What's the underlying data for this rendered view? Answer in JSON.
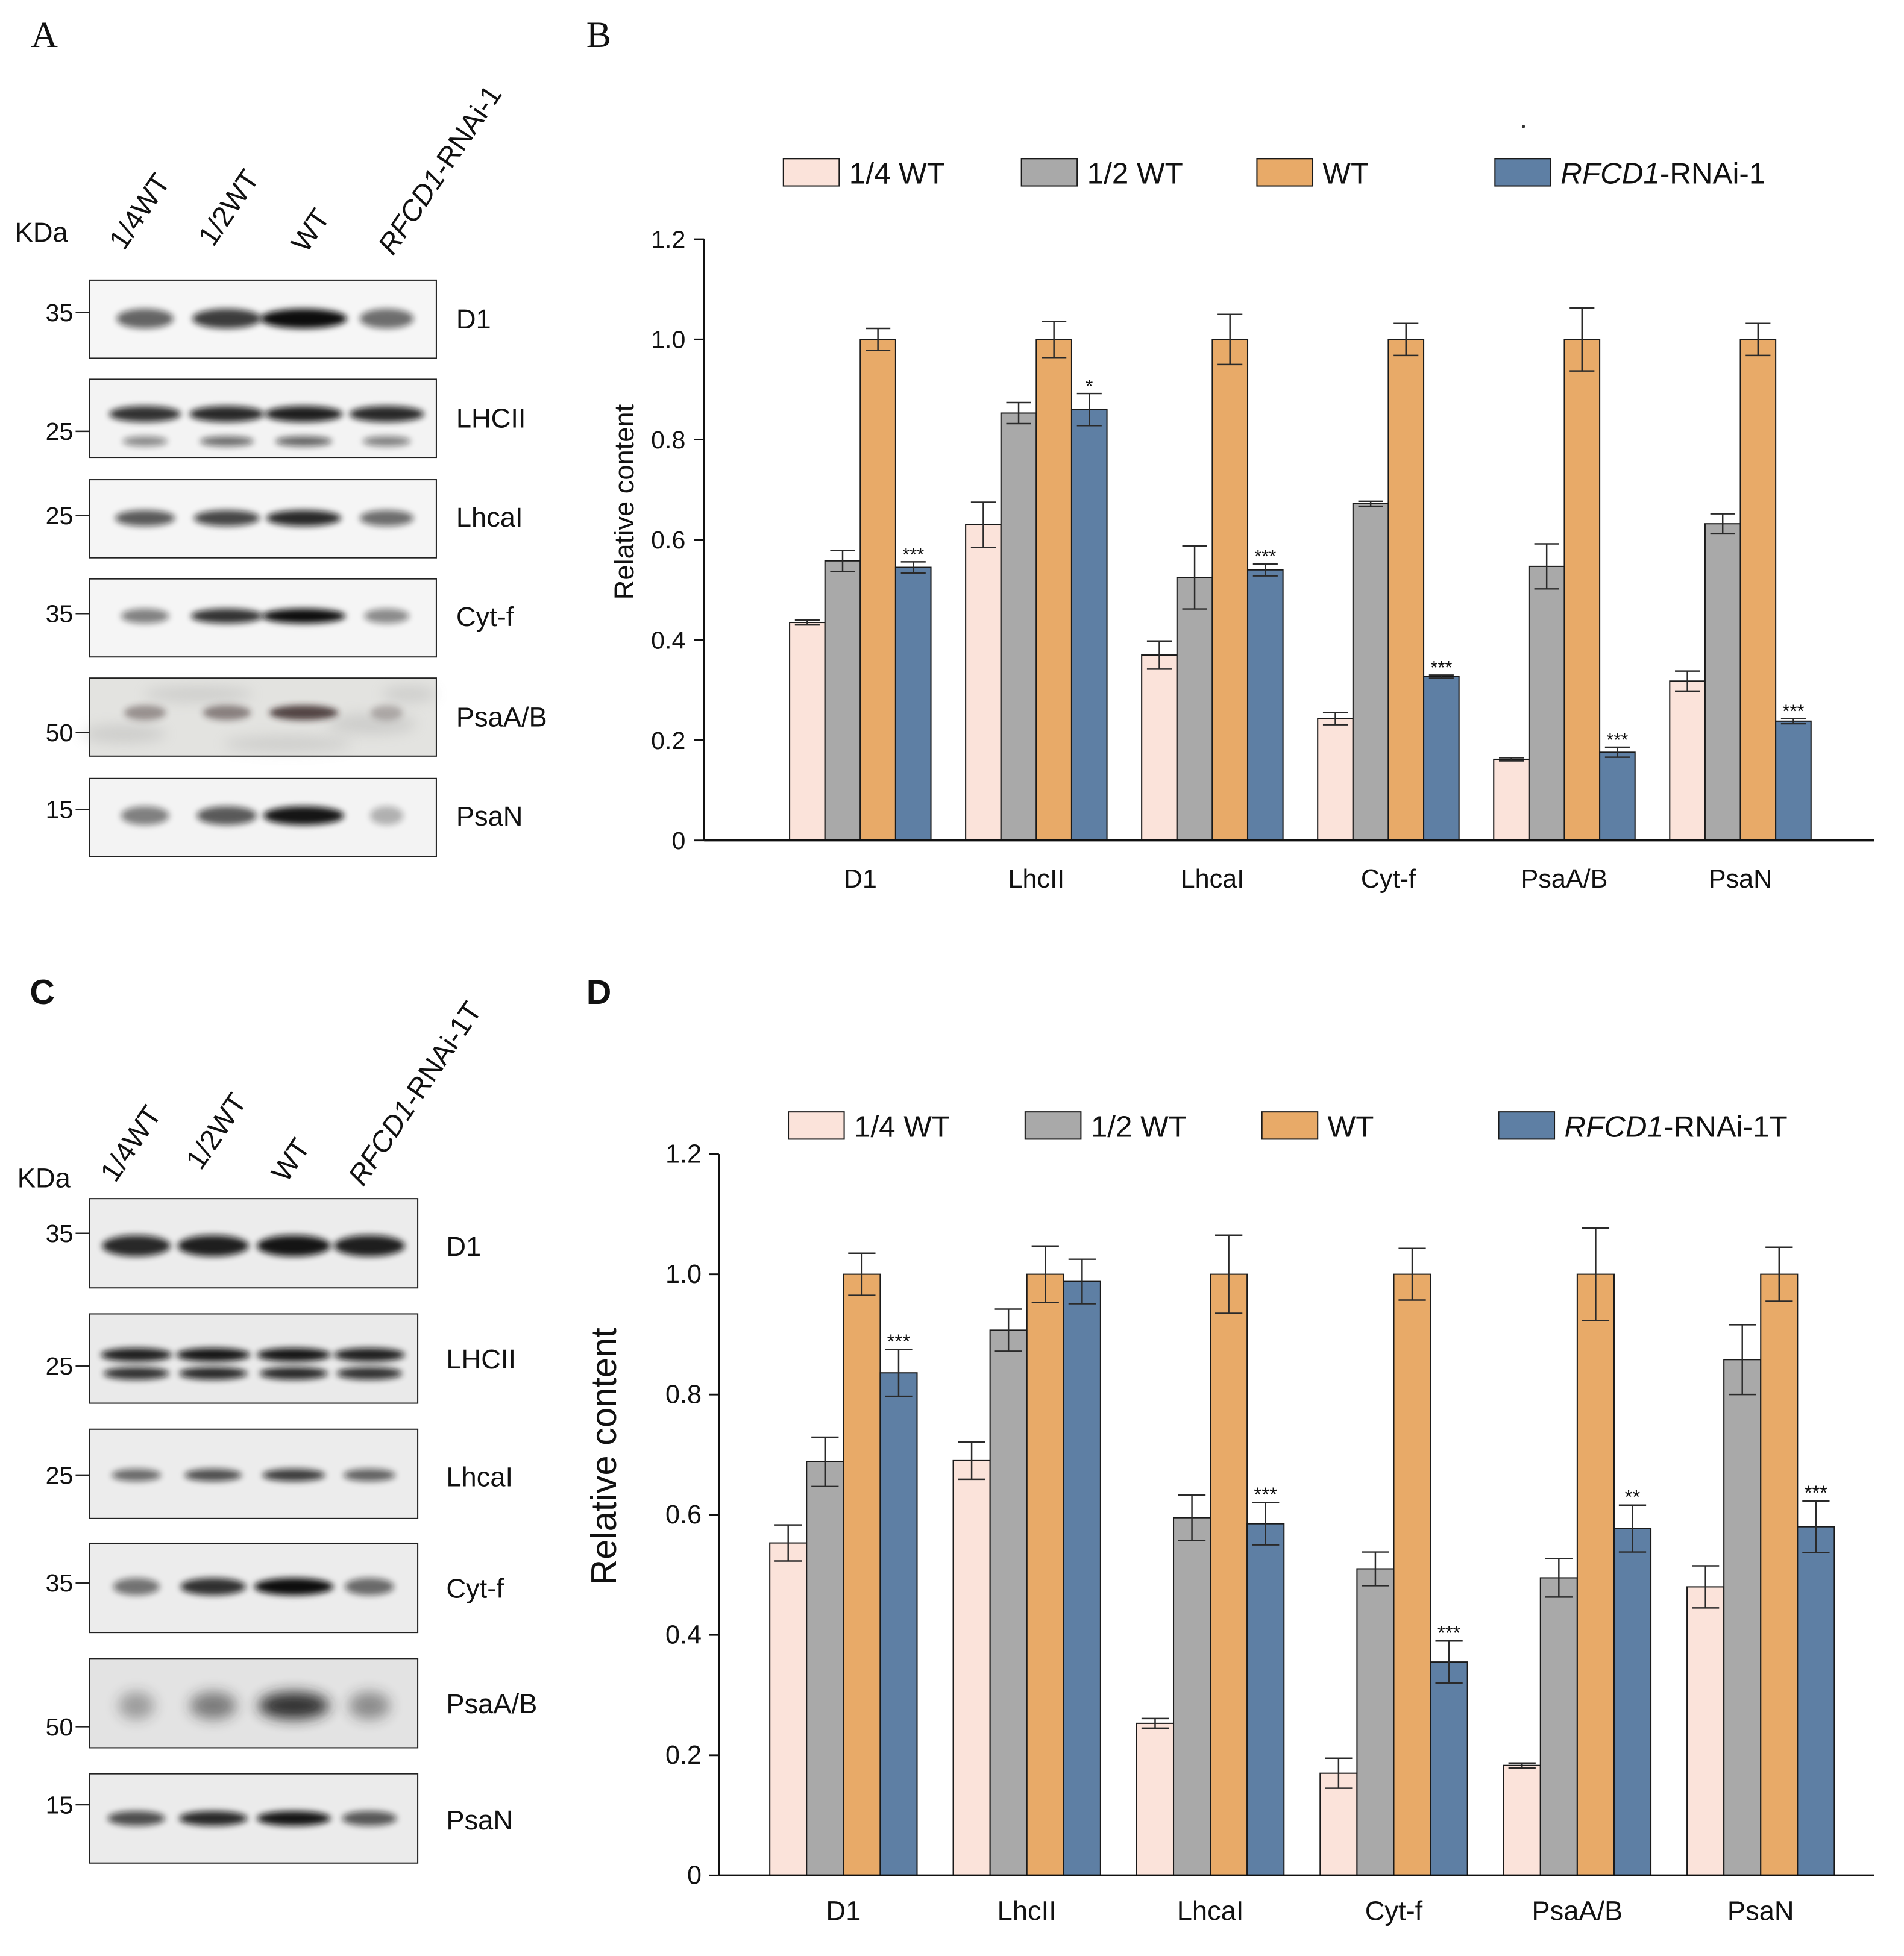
{
  "panel_labels": {
    "a": "A",
    "b": "B",
    "c": "C",
    "d": "D"
  },
  "blots": [
    {
      "kda_label": "KDa",
      "lanes": [
        {
          "label": "1/4WT"
        },
        {
          "label": "1/2WT"
        },
        {
          "label": "WT"
        },
        {
          "label_italic": "RFCD1",
          "label_suffix": "-RNAi-1"
        }
      ],
      "rows": [
        {
          "protein": "D1",
          "marker": "35",
          "band_intensity": [
            0.5,
            0.7,
            1.0,
            0.45
          ]
        },
        {
          "protein": "LHCII",
          "marker": "25",
          "band_intensity": [
            0.75,
            0.8,
            0.85,
            0.8
          ],
          "lower_band_intensity": [
            0.3,
            0.45,
            0.5,
            0.35
          ]
        },
        {
          "protein": "LhcaI",
          "marker": "25",
          "band_intensity": [
            0.55,
            0.65,
            0.8,
            0.45
          ]
        },
        {
          "protein": "Cyt-f",
          "marker": "35",
          "band_intensity": [
            0.35,
            0.75,
            0.95,
            0.3
          ]
        },
        {
          "protein": "PsaA/B",
          "marker": "50",
          "band_intensity": [
            0.25,
            0.35,
            0.7,
            0.08
          ]
        },
        {
          "protein": "PsaN",
          "marker": "15",
          "band_intensity": [
            0.35,
            0.55,
            0.9,
            0.1
          ]
        }
      ]
    },
    {
      "kda_label": "KDa",
      "lanes": [
        {
          "label": "1/4WT"
        },
        {
          "label": "1/2WT"
        },
        {
          "label": "WT"
        },
        {
          "label_italic": "RFCD1",
          "label_suffix": "-RNAi-1T"
        }
      ],
      "rows": [
        {
          "protein": "D1",
          "marker": "35",
          "band_intensity": [
            0.8,
            0.85,
            0.9,
            0.85
          ]
        },
        {
          "protein": "LHCII",
          "marker": "25",
          "band_intensity": [
            0.85,
            0.9,
            0.9,
            0.85
          ],
          "lower_band_intensity": [
            0.75,
            0.8,
            0.8,
            0.75
          ]
        },
        {
          "protein": "LhcaI",
          "marker": "25",
          "band_intensity": [
            0.45,
            0.6,
            0.7,
            0.5
          ]
        },
        {
          "protein": "Cyt-f",
          "marker": "35",
          "band_intensity": [
            0.4,
            0.75,
            1.0,
            0.45
          ]
        },
        {
          "protein": "PsaA/B",
          "marker": "50",
          "band_intensity": [
            0.2,
            0.4,
            0.85,
            0.3
          ]
        },
        {
          "protein": "PsaN",
          "marker": "15",
          "band_intensity": [
            0.6,
            0.8,
            0.9,
            0.55
          ]
        }
      ]
    }
  ],
  "chart_data": [
    {
      "type": "bar",
      "categories": [
        "D1",
        "LhcII",
        "LhcaI",
        "Cyt-f",
        "PsaA/B",
        "PsaN"
      ],
      "ylabel": "Relative content",
      "ylim": [
        0,
        1.2
      ],
      "ytick_labels": [
        "0",
        "0.2",
        "0.4",
        "0.6",
        "0.8",
        "1.0",
        "1.2"
      ],
      "series": [
        {
          "name": "1/4 WT",
          "color": "#fbe3da",
          "values": [
            0.435,
            0.63,
            0.37,
            0.243,
            0.162,
            0.318
          ],
          "errors": [
            0.005,
            0.045,
            0.028,
            0.012,
            0.003,
            0.02
          ]
        },
        {
          "name": "1/2 WT",
          "color": "#a9a9a9",
          "values": [
            0.558,
            0.853,
            0.525,
            0.672,
            0.547,
            0.632
          ],
          "errors": [
            0.021,
            0.021,
            0.063,
            0.005,
            0.045,
            0.02
          ]
        },
        {
          "name": "WT",
          "color": "#e8aa68",
          "values": [
            1.0,
            1.0,
            1.0,
            1.0,
            1.0,
            1.0
          ],
          "errors": [
            0.022,
            0.036,
            0.05,
            0.032,
            0.063,
            0.032
          ]
        },
        {
          "name_italic": "RFCD1",
          "name_suffix": "-RNAi-1",
          "color": "#5e7fa4",
          "values": [
            0.545,
            0.86,
            0.54,
            0.327,
            0.176,
            0.238
          ],
          "errors": [
            0.011,
            0.032,
            0.012,
            0.003,
            0.01,
            0.005
          ],
          "significance": [
            "***",
            "*",
            "***",
            "***",
            "***",
            "***"
          ]
        }
      ]
    },
    {
      "type": "bar",
      "categories": [
        "D1",
        "LhcII",
        "LhcaI",
        "Cyt-f",
        "PsaA/B",
        "PsaN"
      ],
      "ylabel": "Relative content",
      "ylim": [
        0,
        1.2
      ],
      "ytick_labels": [
        "0",
        "0.2",
        "0.4",
        "0.6",
        "0.8",
        "1.0",
        "1.2"
      ],
      "series": [
        {
          "name": "1/4 WT",
          "color": "#fbe3da",
          "values": [
            0.553,
            0.69,
            0.253,
            0.17,
            0.183,
            0.48
          ],
          "errors": [
            0.03,
            0.031,
            0.008,
            0.025,
            0.004,
            0.035
          ]
        },
        {
          "name": "1/2 WT",
          "color": "#a9a9a9",
          "values": [
            0.688,
            0.907,
            0.595,
            0.51,
            0.495,
            0.858
          ],
          "errors": [
            0.041,
            0.035,
            0.038,
            0.028,
            0.032,
            0.058
          ]
        },
        {
          "name": "WT",
          "color": "#e8aa68",
          "values": [
            1.0,
            1.0,
            1.0,
            1.0,
            1.0,
            1.0
          ],
          "errors": [
            0.035,
            0.047,
            0.065,
            0.043,
            0.077,
            0.045
          ]
        },
        {
          "name_italic": "RFCD1",
          "name_suffix": "-RNAi-1T",
          "color": "#5e7fa4",
          "values": [
            0.836,
            0.988,
            0.585,
            0.355,
            0.577,
            0.58
          ],
          "errors": [
            0.039,
            0.037,
            0.035,
            0.035,
            0.039,
            0.043
          ],
          "significance": [
            "***",
            null,
            "***",
            "***",
            "**",
            "***"
          ]
        }
      ]
    }
  ]
}
